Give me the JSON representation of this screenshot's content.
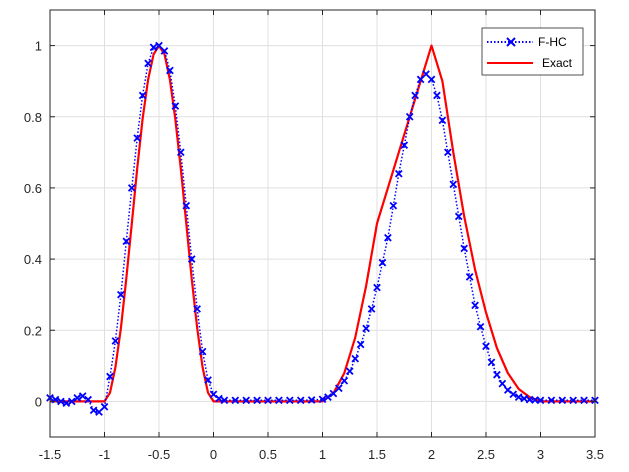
{
  "chart_data": {
    "type": "line",
    "title": "",
    "xlabel": "",
    "ylabel": "",
    "xlim": [
      -1.5,
      3.5
    ],
    "ylim": [
      -0.1,
      1.1
    ],
    "xticks": [
      "-1.5",
      "-1",
      "-0.5",
      "0",
      "0.5",
      "1",
      "1.5",
      "2",
      "2.5",
      "3",
      "3.5"
    ],
    "yticks": [
      "0",
      "0.2",
      "0.4",
      "0.6",
      "0.8",
      "1"
    ],
    "grid": true,
    "legend_location": "top-right",
    "series": [
      {
        "name": "F-HC",
        "style": "dotted line with x markers",
        "color": "#0000FF",
        "x": [
          -1.5,
          -1.45,
          -1.4,
          -1.35,
          -1.3,
          -1.25,
          -1.2,
          -1.15,
          -1.1,
          -1.05,
          -1.0,
          -0.95,
          -0.9,
          -0.85,
          -0.8,
          -0.75,
          -0.7,
          -0.65,
          -0.6,
          -0.55,
          -0.5,
          -0.45,
          -0.4,
          -0.35,
          -0.3,
          -0.25,
          -0.2,
          -0.15,
          -0.1,
          -0.05,
          0.0,
          0.05,
          0.1,
          0.2,
          0.3,
          0.4,
          0.5,
          0.6,
          0.7,
          0.8,
          0.9,
          1.0,
          1.05,
          1.1,
          1.15,
          1.2,
          1.25,
          1.3,
          1.35,
          1.4,
          1.45,
          1.5,
          1.55,
          1.6,
          1.65,
          1.7,
          1.75,
          1.8,
          1.85,
          1.9,
          1.95,
          2.0,
          2.05,
          2.1,
          2.15,
          2.2,
          2.25,
          2.3,
          2.35,
          2.4,
          2.45,
          2.5,
          2.55,
          2.6,
          2.65,
          2.7,
          2.75,
          2.8,
          2.85,
          2.9,
          2.95,
          3.0,
          3.1,
          3.2,
          3.3,
          3.4,
          3.5
        ],
        "values": [
          0.01,
          0.005,
          0.0,
          -0.005,
          0.0,
          0.01,
          0.015,
          0.005,
          -0.025,
          -0.03,
          -0.015,
          0.07,
          0.17,
          0.3,
          0.45,
          0.6,
          0.74,
          0.86,
          0.95,
          0.995,
          1.0,
          0.985,
          0.93,
          0.83,
          0.7,
          0.55,
          0.4,
          0.26,
          0.14,
          0.06,
          0.02,
          0.008,
          0.003,
          0.003,
          0.003,
          0.003,
          0.003,
          0.003,
          0.003,
          0.003,
          0.004,
          0.006,
          0.012,
          0.022,
          0.037,
          0.058,
          0.085,
          0.12,
          0.16,
          0.205,
          0.26,
          0.32,
          0.39,
          0.46,
          0.55,
          0.64,
          0.72,
          0.8,
          0.86,
          0.905,
          0.92,
          0.905,
          0.86,
          0.79,
          0.7,
          0.61,
          0.52,
          0.43,
          0.35,
          0.27,
          0.21,
          0.155,
          0.11,
          0.075,
          0.05,
          0.032,
          0.02,
          0.012,
          0.008,
          0.005,
          0.004,
          0.003,
          0.003,
          0.003,
          0.003,
          0.003,
          0.003
        ]
      },
      {
        "name": "Exact",
        "style": "solid line",
        "color": "#FF0000",
        "x": [
          -1.5,
          -1.0,
          -0.95,
          -0.9,
          -0.85,
          -0.8,
          -0.75,
          -0.7,
          -0.65,
          -0.6,
          -0.55,
          -0.5,
          -0.45,
          -0.4,
          -0.35,
          -0.3,
          -0.25,
          -0.2,
          -0.15,
          -0.1,
          -0.05,
          0.0,
          1.0,
          1.1,
          1.2,
          1.3,
          1.4,
          1.5,
          1.6,
          1.7,
          1.8,
          1.9,
          2.0,
          2.1,
          2.2,
          2.3,
          2.4,
          2.5,
          2.6,
          2.7,
          2.8,
          2.9,
          3.0,
          3.5
        ],
        "values": [
          0.0,
          0.0,
          0.0245,
          0.0955,
          0.2061,
          0.3455,
          0.5,
          0.6545,
          0.7939,
          0.9045,
          0.9755,
          1.0,
          0.9755,
          0.9045,
          0.7939,
          0.6545,
          0.5,
          0.3455,
          0.2061,
          0.0955,
          0.0245,
          0.0,
          0.0,
          0.0228,
          0.0796,
          0.1792,
          0.3244,
          0.5,
          0.6,
          0.7,
          0.8,
          0.9,
          1.0,
          0.9,
          0.7,
          0.52,
          0.37,
          0.25,
          0.15,
          0.08,
          0.035,
          0.012,
          0.0,
          0.0
        ]
      }
    ]
  },
  "colors": {
    "grid": "#DFDFDF",
    "axis": "#262626",
    "fhc": "#0000FF",
    "exact": "#FF0000"
  }
}
